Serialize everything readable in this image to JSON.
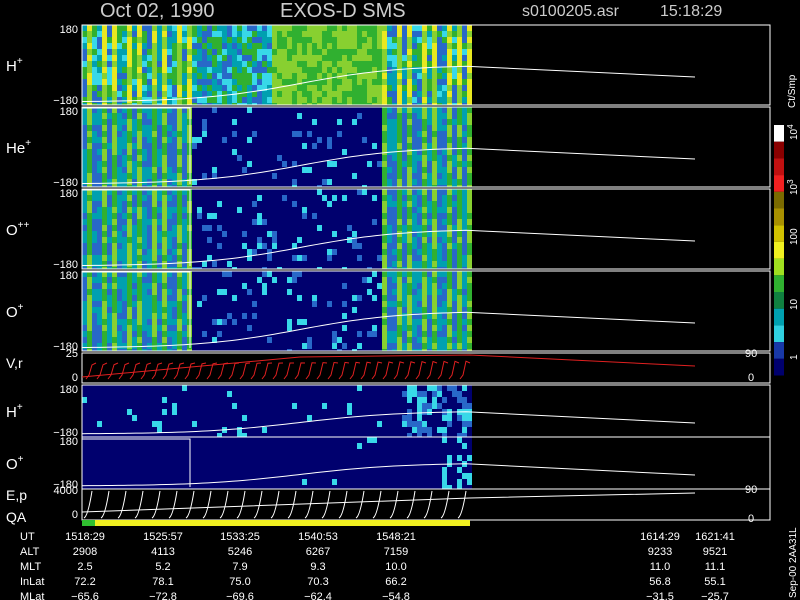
{
  "header": {
    "date": "Oct 02, 1990",
    "instrument": "EXOS-D SMS",
    "file": "s0100205.asr",
    "time": "15:18:29"
  },
  "panels": [
    {
      "label": "H",
      "sup": "+",
      "top": "180",
      "bottom": "−180"
    },
    {
      "label": "He",
      "sup": "+",
      "top": "180",
      "bottom": "−180"
    },
    {
      "label": "O",
      "sup": "++",
      "top": "180",
      "bottom": "−180"
    },
    {
      "label": "O",
      "sup": "+",
      "top": "180",
      "bottom": "−180"
    }
  ],
  "vr_panel": {
    "label": "V,r",
    "left_top": "25",
    "left_bottom": "0",
    "right_top": "90",
    "right_bottom": "0"
  },
  "lower_panels": [
    {
      "label": "H",
      "sup": "+",
      "top": "180",
      "bottom": "−180"
    },
    {
      "label": "O",
      "sup": "+",
      "top": "180",
      "bottom": "−180"
    }
  ],
  "ep_panel": {
    "label": "E,p",
    "qa_label": "QA",
    "left_top": "4000",
    "left_bottom": "0",
    "right_top": "90",
    "right_bottom": "0"
  },
  "colorbar": {
    "unit": "Ct/Smp",
    "labels": [
      {
        "base": "10",
        "exp": "4"
      },
      {
        "base": "10",
        "exp": "3"
      },
      {
        "base": "100"
      },
      {
        "base": "10"
      },
      {
        "base": "1"
      }
    ]
  },
  "orbit": {
    "rows": [
      {
        "label": "UT",
        "values": [
          "1518:29",
          "1525:57",
          "1533:25",
          "1540:53",
          "1548:21",
          "1614:29",
          "1621:41"
        ]
      },
      {
        "label": "ALT",
        "values": [
          "2908",
          "4113",
          "5246",
          "6267",
          "7159",
          "9233",
          "9521"
        ]
      },
      {
        "label": "MLT",
        "values": [
          "2.5",
          "5.2",
          "7.9",
          "9.3",
          "10.0",
          "11.0",
          "11.1"
        ]
      },
      {
        "label": "InLat",
        "values": [
          "72.2",
          "78.1",
          "75.0",
          "70.3",
          "66.2",
          "56.8",
          "55.1"
        ]
      },
      {
        "label": "MLat",
        "values": [
          "−65.6",
          "−72.8",
          "−69.6",
          "−62.4",
          "−54.8",
          "−31.5",
          "−25.7"
        ]
      }
    ]
  },
  "footer": "Sep-00 2AA31L"
}
